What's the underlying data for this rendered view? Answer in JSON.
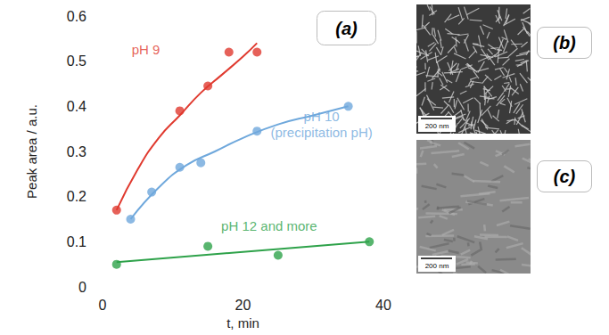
{
  "chart_data": {
    "type": "scatter",
    "panel_label": "(a)",
    "x_label": "t, min",
    "y_label": "Peak area / a.u.",
    "xlim": [
      0,
      40
    ],
    "xticks": [
      0,
      20,
      40
    ],
    "ylim": [
      0,
      0.6
    ],
    "yticks": [
      0,
      0.1,
      0.2,
      0.3,
      0.4,
      0.5,
      0.6
    ],
    "grid": false,
    "series": [
      {
        "name": "pH 9",
        "color": "#e03a2f",
        "marker": "circle",
        "x": [
          2,
          11,
          15,
          18,
          22
        ],
        "values": [
          0.17,
          0.39,
          0.445,
          0.52,
          0.52
        ],
        "fit": {
          "x": [
            2,
            5,
            8,
            11,
            14,
            17,
            20,
            22
          ],
          "values": [
            0.17,
            0.26,
            0.33,
            0.38,
            0.43,
            0.47,
            0.51,
            0.54
          ]
        }
      },
      {
        "name": "pH 10 (precipitation pH)",
        "color": "#6fa8dc",
        "marker": "circle",
        "x": [
          4,
          7,
          11,
          14,
          22,
          35
        ],
        "values": [
          0.15,
          0.21,
          0.265,
          0.275,
          0.345,
          0.4
        ],
        "fit": {
          "x": [
            4,
            8,
            12,
            16,
            20,
            25,
            30,
            35
          ],
          "values": [
            0.15,
            0.22,
            0.27,
            0.3,
            0.33,
            0.36,
            0.38,
            0.4
          ]
        }
      },
      {
        "name": "pH 12 and more",
        "color": "#2ea24a",
        "marker": "circle",
        "x": [
          2,
          15,
          25,
          38
        ],
        "values": [
          0.05,
          0.09,
          0.07,
          0.1
        ],
        "fit": {
          "x": [
            2,
            38
          ],
          "values": [
            0.055,
            0.1
          ]
        }
      }
    ]
  },
  "images": [
    {
      "label": "(b)",
      "scale_bar": "200 nm"
    },
    {
      "label": "(c)",
      "scale_bar": "200 nm"
    }
  ]
}
